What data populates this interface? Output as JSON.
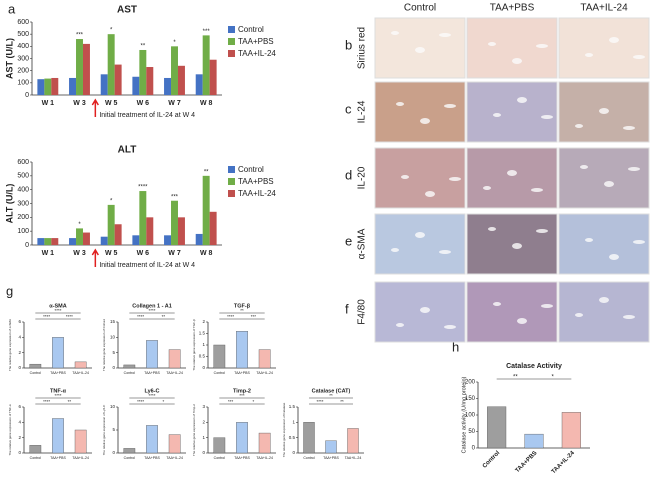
{
  "panel_labels": [
    "a",
    "b",
    "c",
    "d",
    "e",
    "f",
    "g",
    "h"
  ],
  "histology": {
    "columns": [
      "Control",
      "TAA+PBS",
      "TAA+IL-24"
    ],
    "rows": [
      "Sirius red",
      "IL-24",
      "IL-20",
      "α-SMA",
      "F4/80"
    ]
  },
  "chart_data": [
    {
      "type": "grouped-bar",
      "title": "AST",
      "ylabel": "AST (U/L)",
      "categories": [
        "W 1",
        "W 3",
        "W 5",
        "W 6",
        "W 7",
        "W 8"
      ],
      "series": [
        {
          "name": "Control",
          "color": "#4472c4",
          "values": [
            130,
            140,
            170,
            150,
            140,
            170
          ]
        },
        {
          "name": "TAA+PBS",
          "color": "#70ad47",
          "values": [
            135,
            460,
            500,
            370,
            400,
            490
          ]
        },
        {
          "name": "TAA+IL-24",
          "color": "#c0504d",
          "values": [
            140,
            420,
            250,
            230,
            240,
            290
          ]
        }
      ],
      "ylim": [
        0,
        600
      ],
      "yticks": [
        0,
        100,
        200,
        300,
        400,
        500,
        600
      ],
      "grid": false,
      "significance": [
        null,
        "***",
        "*",
        "**",
        "*",
        "***"
      ],
      "annotation": "Initial treatment of IL-24 at W 4"
    },
    {
      "type": "grouped-bar",
      "title": "ALT",
      "ylabel": "ALT (U/L)",
      "categories": [
        "W 1",
        "W 3",
        "W 5",
        "W 6",
        "W 7",
        "W 8"
      ],
      "series": [
        {
          "name": "Control",
          "color": "#4472c4",
          "values": [
            50,
            50,
            60,
            70,
            70,
            80
          ]
        },
        {
          "name": "TAA+PBS",
          "color": "#70ad47",
          "values": [
            50,
            120,
            290,
            390,
            320,
            500
          ]
        },
        {
          "name": "TAA+IL-24",
          "color": "#c0504d",
          "values": [
            50,
            90,
            150,
            200,
            200,
            240
          ]
        }
      ],
      "ylim": [
        0,
        600
      ],
      "yticks": [
        0,
        100,
        200,
        300,
        400,
        500,
        600
      ],
      "grid": false,
      "significance": [
        null,
        "*",
        "*",
        "****",
        "***",
        "**"
      ],
      "annotation": "Initial treatment of IL-24 at W 4"
    },
    {
      "type": "bar",
      "title": "α-SMA",
      "ylabel": "The relative gene expression of α-SMA",
      "categories": [
        "Control",
        "TAA+PBS",
        "TAA+IL-24"
      ],
      "values": [
        0.5,
        4,
        0.8
      ],
      "colors": [
        "#9e9e9e",
        "#a9c8f0",
        "#f4b8b0"
      ],
      "ylim": [
        0,
        6
      ],
      "yticks": [
        0,
        2,
        4,
        6
      ],
      "significance": [
        "****",
        "****",
        "****"
      ]
    },
    {
      "type": "bar",
      "title": "Collagen 1 - A1",
      "ylabel": "The relative gene expression of Col1a1",
      "categories": [
        "Control",
        "TAA+PBS",
        "TAA+IL-24"
      ],
      "values": [
        1,
        9,
        6
      ],
      "colors": [
        "#9e9e9e",
        "#a9c8f0",
        "#f4b8b0"
      ],
      "ylim": [
        0,
        15
      ],
      "yticks": [
        0,
        5,
        10,
        15
      ],
      "significance": [
        "****",
        "**",
        "****"
      ]
    },
    {
      "type": "bar",
      "title": "TGF-β",
      "ylabel": "The relative gene expression of TGF-β",
      "categories": [
        "Control",
        "TAA+PBS",
        "TAA+IL-24"
      ],
      "values": [
        1,
        1.6,
        0.8
      ],
      "colors": [
        "#9e9e9e",
        "#a9c8f0",
        "#f4b8b0"
      ],
      "ylim": [
        0,
        2
      ],
      "yticks": [
        0,
        0.5,
        1,
        1.5,
        2
      ],
      "significance": [
        "****",
        "***",
        "**"
      ]
    },
    {
      "type": "bar",
      "title": "TNF-α",
      "ylabel": "The relative gene expression of TNF-α",
      "categories": [
        "Control",
        "TAA+PBS",
        "TAA+IL-24"
      ],
      "values": [
        1,
        4.5,
        3
      ],
      "colors": [
        "#9e9e9e",
        "#a9c8f0",
        "#f4b8b0"
      ],
      "ylim": [
        0,
        6
      ],
      "yticks": [
        0,
        2,
        4,
        6
      ],
      "significance": [
        "****",
        "**",
        "****"
      ]
    },
    {
      "type": "bar",
      "title": "Ly6-C",
      "ylabel": "The relative gene expression of Ly6-C",
      "categories": [
        "Control",
        "TAA+PBS",
        "TAA+IL-24"
      ],
      "values": [
        1,
        6,
        4
      ],
      "colors": [
        "#9e9e9e",
        "#a9c8f0",
        "#f4b8b0"
      ],
      "ylim": [
        0,
        10
      ],
      "yticks": [
        0,
        5,
        10
      ],
      "significance": [
        "****",
        "*",
        "****"
      ]
    },
    {
      "type": "bar",
      "title": "Timp-2",
      "ylabel": "The relative gene expression of Timp-2",
      "categories": [
        "Control",
        "TAA+PBS",
        "TAA+IL-24"
      ],
      "values": [
        1,
        2,
        1.3
      ],
      "colors": [
        "#9e9e9e",
        "#a9c8f0",
        "#f4b8b0"
      ],
      "ylim": [
        0,
        3
      ],
      "yticks": [
        0,
        1,
        2,
        3
      ],
      "significance": [
        "***",
        "*",
        "***"
      ]
    },
    {
      "type": "bar",
      "title": "Catalase (CAT)",
      "ylabel": "The relative gene expression of Catalase",
      "categories": [
        "Control",
        "TAA+PBS",
        "TAA+IL-24"
      ],
      "values": [
        1,
        0.4,
        0.8
      ],
      "colors": [
        "#9e9e9e",
        "#a9c8f0",
        "#f4b8b0"
      ],
      "ylim": [
        0,
        1.5
      ],
      "yticks": [
        0,
        0.5,
        1,
        1.5
      ],
      "significance": [
        "****",
        "**",
        "**"
      ]
    },
    {
      "type": "bar",
      "title": "Catalase Activity",
      "ylabel": "Catalase activity (U/mg protein)",
      "categories": [
        "Control",
        "TAA+PBS",
        "TAA+IL-24"
      ],
      "values": [
        125,
        42,
        108
      ],
      "colors": [
        "#9e9e9e",
        "#a9c8f0",
        "#f4b8b0"
      ],
      "ylim": [
        0,
        200
      ],
      "yticks": [
        0,
        50,
        100,
        150,
        200
      ],
      "significance": [
        "**",
        "*"
      ]
    }
  ]
}
